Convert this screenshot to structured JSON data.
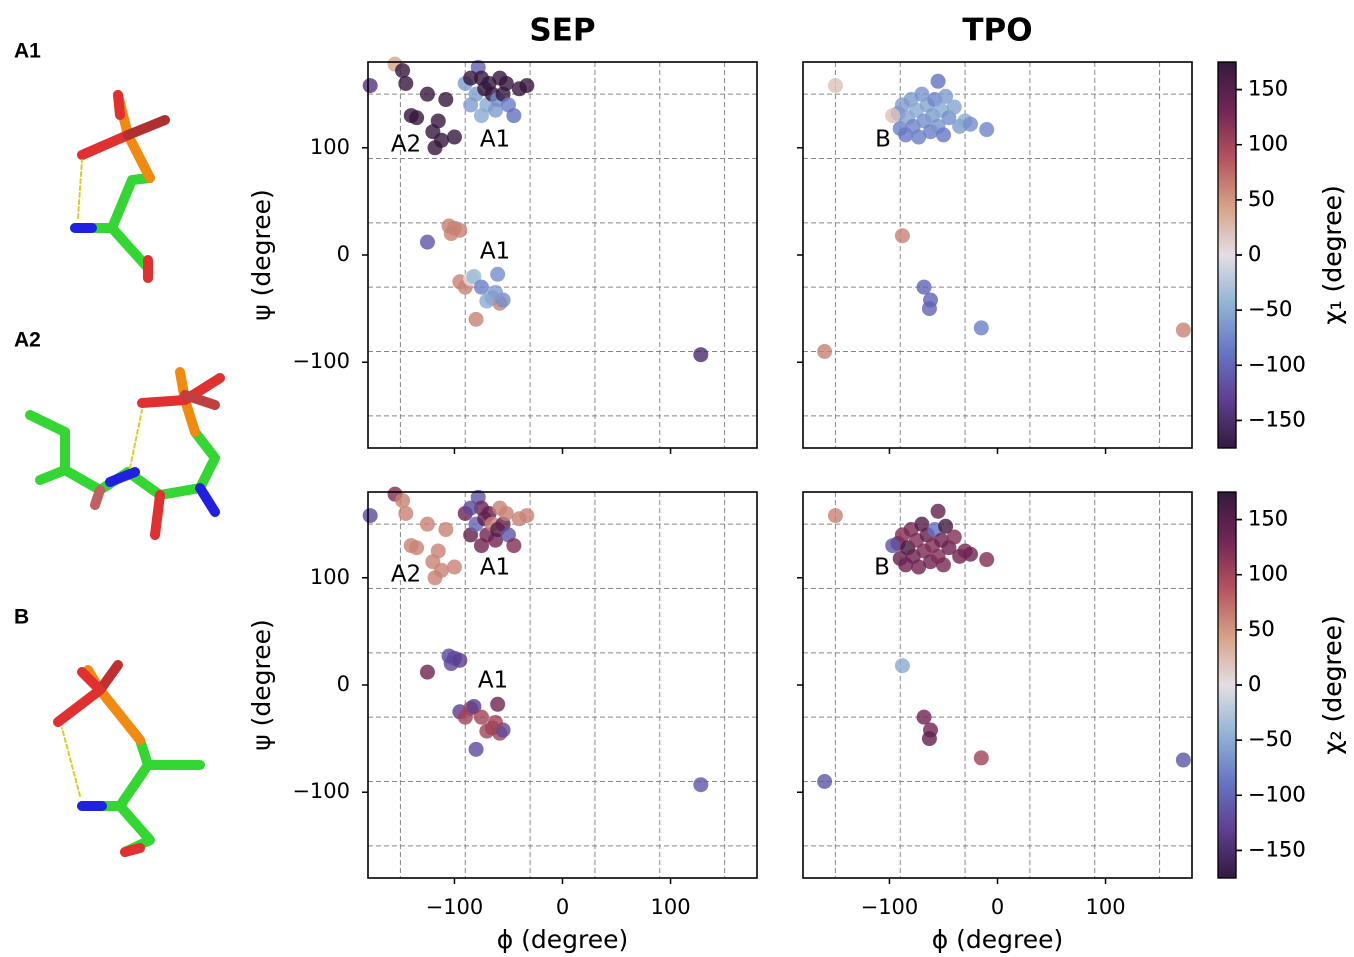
{
  "structure_labels": [
    "A1",
    "A2",
    "B"
  ],
  "chart_data": [
    {
      "type": "scatter",
      "title": "SEP",
      "ylabel": "ψ (degree)",
      "colormap": "twilight_shifted",
      "xlim": [
        -180,
        180
      ],
      "ylim": [
        -180,
        180
      ],
      "xticks": [
        -100,
        0,
        100
      ],
      "yticks": [
        {
          "value": -100,
          "label": "−100"
        },
        0,
        100
      ],
      "xticklabels": false,
      "yticklabels": true,
      "xgrid": [
        -150,
        -90,
        -30,
        30,
        90,
        150
      ],
      "ygrid": [
        -150,
        -90,
        -30,
        30,
        90,
        150
      ],
      "annotations": [
        "A2",
        "A1",
        "A1"
      ],
      "x": [
        -178,
        -155,
        -148,
        -145,
        -140,
        -135,
        -125,
        -120,
        -118,
        -115,
        -112,
        -108,
        -100,
        -90,
        -85,
        -80,
        -78,
        -75,
        -72,
        -70,
        -68,
        -65,
        -62,
        -60,
        -58,
        -55,
        -52,
        -50,
        -45,
        -40,
        -33,
        -85,
        -75,
        -125,
        -105,
        -100,
        -103,
        -95,
        -95,
        -90,
        -85,
        -82,
        -80,
        -75,
        -65,
        -60,
        -58,
        -55,
        -62,
        -70,
        128
      ],
      "y": [
        158,
        178,
        172,
        160,
        130,
        128,
        150,
        115,
        100,
        125,
        107,
        145,
        110,
        160,
        140,
        150,
        175,
        165,
        155,
        140,
        160,
        150,
        135,
        145,
        165,
        150,
        160,
        140,
        130,
        155,
        158,
        165,
        130,
        12,
        27,
        25,
        20,
        23,
        -25,
        -30,
        -22,
        -20,
        -60,
        -30,
        -40,
        -18,
        -45,
        -42,
        -35,
        -43,
        -93
      ],
      "c": [
        -140,
        40,
        170,
        170,
        170,
        170,
        170,
        170,
        170,
        170,
        170,
        170,
        170,
        -60,
        -60,
        -60,
        -100,
        170,
        170,
        -50,
        170,
        170,
        -60,
        -70,
        170,
        170,
        170,
        -80,
        -90,
        170,
        170,
        170,
        -50,
        -110,
        60,
        60,
        60,
        60,
        60,
        60,
        0,
        -40,
        60,
        -80,
        -60,
        -70,
        60,
        -70,
        -60,
        -50,
        -150
      ]
    },
    {
      "type": "scatter",
      "title": "TPO",
      "colormap": "twilight_shifted",
      "xlim": [
        -180,
        180
      ],
      "ylim": [
        -180,
        180
      ],
      "xticks": [
        -100,
        0,
        100
      ],
      "yticks": [
        -100,
        0,
        100
      ],
      "xticklabels": false,
      "yticklabels": false,
      "xgrid": [
        -150,
        -90,
        -30,
        30,
        90,
        150
      ],
      "ygrid": [
        -150,
        -90,
        -30,
        30,
        90,
        150
      ],
      "annotations": [
        "B"
      ],
      "colorbar": {
        "label": "χ₁ (degree)",
        "lim": [
          -175,
          175
        ],
        "ticks": [
          {
            "value": -150,
            "label": "−150"
          },
          {
            "value": -100,
            "label": "−100"
          },
          {
            "value": -50,
            "label": "−50"
          },
          0,
          50,
          100,
          150
        ]
      },
      "x": [
        -92,
        -90,
        -88,
        -85,
        -83,
        -80,
        -78,
        -75,
        -73,
        -70,
        -68,
        -65,
        -62,
        -60,
        -58,
        -55,
        -55,
        -52,
        -50,
        -48,
        -45,
        -40,
        -35,
        -30,
        -25,
        -10,
        -97,
        -150,
        -88,
        -68,
        -62,
        -63,
        -15,
        -160,
        172
      ],
      "y": [
        132,
        118,
        140,
        112,
        128,
        145,
        120,
        135,
        110,
        150,
        125,
        140,
        115,
        130,
        145,
        162,
        120,
        135,
        112,
        148,
        128,
        138,
        120,
        125,
        122,
        117,
        130,
        158,
        18,
        -30,
        -42,
        -50,
        -68,
        -90,
        -70
      ],
      "c": [
        -70,
        -80,
        -60,
        -85,
        -55,
        -60,
        -75,
        -50,
        -80,
        -65,
        -70,
        -55,
        -80,
        -60,
        -75,
        -90,
        -65,
        -50,
        -85,
        -60,
        -70,
        -55,
        -60,
        -50,
        -70,
        -75,
        20,
        20,
        60,
        -100,
        -100,
        -100,
        -80,
        60,
        60
      ]
    },
    {
      "type": "scatter",
      "xlabel": "ϕ (degree)",
      "ylabel": "ψ (degree)",
      "colormap": "twilight_shifted",
      "xlim": [
        -180,
        180
      ],
      "ylim": [
        -180,
        180
      ],
      "xticks": [
        {
          "value": -100,
          "label": "−100"
        },
        0,
        100
      ],
      "yticks": [
        {
          "value": -100,
          "label": "−100"
        },
        0,
        100
      ],
      "xticklabels": true,
      "yticklabels": true,
      "xgrid": [
        -150,
        -90,
        -30,
        30,
        90,
        150
      ],
      "ygrid": [
        -150,
        -90,
        -30,
        30,
        90,
        150
      ],
      "annotations": [
        "A2",
        "A1",
        "A1"
      ],
      "x": [
        -178,
        -155,
        -148,
        -145,
        -140,
        -135,
        -125,
        -120,
        -118,
        -115,
        -112,
        -108,
        -100,
        -90,
        -85,
        -80,
        -78,
        -75,
        -72,
        -70,
        -68,
        -65,
        -62,
        -60,
        -58,
        -55,
        -52,
        -50,
        -45,
        -40,
        -33,
        -85,
        -75,
        -125,
        -105,
        -100,
        -103,
        -95,
        -95,
        -90,
        -85,
        -82,
        -80,
        -75,
        -65,
        -60,
        -58,
        -55,
        -62,
        -70,
        128
      ],
      "y": [
        158,
        178,
        172,
        160,
        130,
        128,
        150,
        115,
        100,
        125,
        107,
        145,
        110,
        160,
        140,
        150,
        175,
        165,
        155,
        140,
        160,
        150,
        135,
        145,
        165,
        150,
        160,
        140,
        130,
        155,
        158,
        165,
        130,
        12,
        27,
        25,
        20,
        23,
        -25,
        -30,
        -22,
        -20,
        -60,
        -30,
        -40,
        -18,
        -45,
        -42,
        -35,
        -43,
        -93
      ],
      "c": [
        -120,
        120,
        60,
        60,
        60,
        60,
        60,
        60,
        60,
        60,
        60,
        60,
        60,
        130,
        140,
        -100,
        -110,
        130,
        140,
        130,
        140,
        60,
        130,
        150,
        60,
        140,
        60,
        -110,
        120,
        60,
        60,
        -120,
        130,
        130,
        -120,
        -120,
        -120,
        -130,
        -130,
        100,
        100,
        -130,
        -120,
        100,
        100,
        130,
        100,
        -120,
        100,
        100,
        -110
      ]
    },
    {
      "type": "scatter",
      "xlabel": "ϕ (degree)",
      "colormap": "twilight_shifted",
      "xlim": [
        -180,
        180
      ],
      "ylim": [
        -180,
        180
      ],
      "xticks": [
        {
          "value": -100,
          "label": "−100"
        },
        0,
        100
      ],
      "yticks": [
        -100,
        0,
        100
      ],
      "xticklabels": true,
      "yticklabels": false,
      "xgrid": [
        -150,
        -90,
        -30,
        30,
        90,
        150
      ],
      "ygrid": [
        -150,
        -90,
        -30,
        30,
        90,
        150
      ],
      "annotations": [
        "B"
      ],
      "colorbar": {
        "label": "χ₂ (degree)",
        "lim": [
          -175,
          175
        ],
        "ticks": [
          {
            "value": -150,
            "label": "−150"
          },
          {
            "value": -100,
            "label": "−100"
          },
          {
            "value": -50,
            "label": "−50"
          },
          0,
          50,
          100,
          150
        ]
      },
      "x": [
        -92,
        -90,
        -88,
        -85,
        -83,
        -80,
        -78,
        -75,
        -73,
        -70,
        -68,
        -65,
        -62,
        -60,
        -58,
        -55,
        -55,
        -52,
        -50,
        -48,
        -45,
        -40,
        -35,
        -30,
        -25,
        -10,
        -97,
        -150,
        -88,
        -68,
        -62,
        -63,
        -15,
        -160,
        172
      ],
      "y": [
        132,
        118,
        140,
        112,
        128,
        145,
        120,
        135,
        110,
        150,
        125,
        140,
        115,
        130,
        145,
        162,
        120,
        135,
        112,
        148,
        128,
        138,
        120,
        125,
        122,
        117,
        130,
        158,
        18,
        -30,
        -42,
        -50,
        -68,
        -90,
        -70
      ],
      "c": [
        130,
        140,
        120,
        130,
        160,
        125,
        135,
        120,
        130,
        150,
        125,
        140,
        130,
        120,
        -90,
        140,
        120,
        130,
        125,
        160,
        135,
        120,
        130,
        125,
        130,
        120,
        -110,
        60,
        -50,
        130,
        130,
        140,
        100,
        -110,
        -110
      ]
    }
  ]
}
